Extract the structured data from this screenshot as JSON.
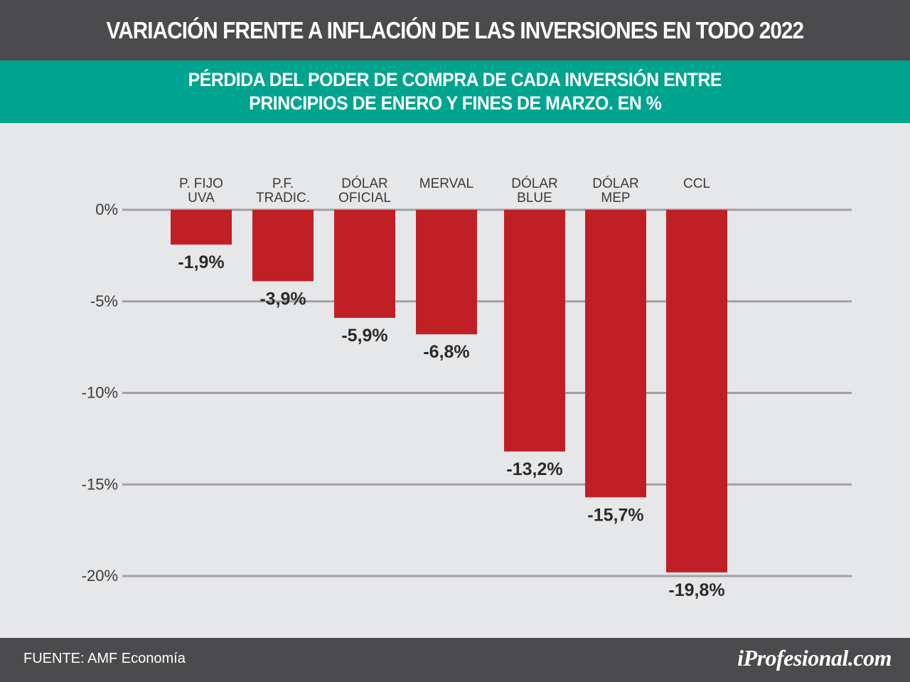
{
  "header": {
    "title": "VARIACIÓN FRENTE A INFLACIÓN DE LAS INVERSIONES EN TODO 2022"
  },
  "subheader": {
    "line1": "PÉRDIDA DEL PODER DE COMPRA DE CADA INVERSIÓN ENTRE",
    "line2": "PRINCIPIOS DE ENERO Y FINES DE MARZO. EN %"
  },
  "footer": {
    "source": "FUENTE: AMF Economía",
    "brand": "iProfesional.com"
  },
  "colors": {
    "bar": "#c11f26",
    "header": "#4b4b4d",
    "subheader": "#00a48e",
    "background": "#e6e7e9",
    "gridline": "#a0a0a2"
  },
  "chart_data": {
    "type": "bar",
    "categories": [
      [
        "P. FIJO",
        "UVA"
      ],
      [
        "P.F.",
        "TRADIC."
      ],
      [
        "DÓLAR",
        "OFICIAL"
      ],
      [
        "MERVAL"
      ],
      [
        "DÓLAR",
        "BLUE"
      ],
      [
        "DÓLAR",
        "MEP"
      ],
      [
        "CCL"
      ]
    ],
    "values": [
      -1.9,
      -3.9,
      -5.9,
      -6.8,
      -13.2,
      -15.7,
      -19.8
    ],
    "value_labels": [
      "-1,9%",
      "-3,9%",
      "-5,9%",
      "-6,8%",
      "-13,2%",
      "-15,7%",
      "-19,8%"
    ],
    "yticks": [
      0,
      -5,
      -10,
      -15,
      -20
    ],
    "ytick_labels": [
      "0%",
      "-5%",
      "-10%",
      "-15%",
      "-20%"
    ],
    "ylim": [
      -20,
      0
    ],
    "grid": true,
    "xlabel": "",
    "ylabel": ""
  }
}
